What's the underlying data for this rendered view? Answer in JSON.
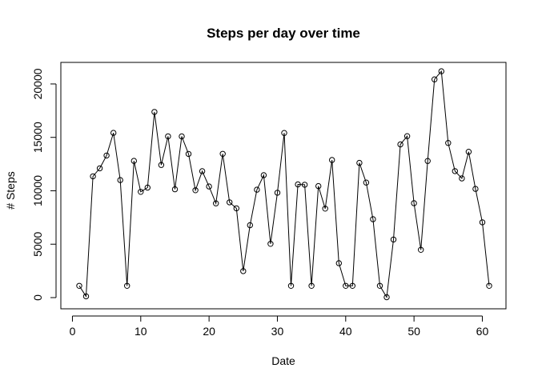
{
  "chart_data": {
    "type": "line",
    "title": "Steps per day over time",
    "xlabel": "Date",
    "ylabel": "# Steps",
    "xlim": [
      1,
      61
    ],
    "ylim": [
      0,
      21194
    ],
    "x_ticks": [
      0,
      10,
      20,
      30,
      40,
      50,
      60
    ],
    "y_ticks": [
      0,
      5000,
      10000,
      15000,
      20000
    ],
    "grid": false,
    "legend": "none",
    "point_style": "open-circle",
    "line_color": "#000000",
    "series": [
      {
        "x": [
          1,
          2,
          3,
          4,
          5,
          6,
          7,
          8,
          9,
          10,
          11,
          12,
          13,
          14,
          15,
          16,
          17,
          18,
          19,
          20,
          21,
          22,
          23,
          24,
          25,
          26,
          27,
          28,
          29,
          30,
          31,
          32,
          33,
          34,
          35,
          36,
          37,
          38,
          39,
          40,
          41,
          42,
          43,
          44,
          45,
          46,
          47,
          48,
          49,
          50,
          51,
          52,
          53,
          54,
          55,
          56,
          57,
          58,
          59,
          60,
          61
        ],
        "y": [
          1100,
          120,
          11350,
          12100,
          13300,
          15420,
          11000,
          1100,
          12800,
          9900,
          10300,
          17380,
          12420,
          15100,
          10140,
          15090,
          13450,
          10050,
          11830,
          10400,
          8820,
          13460,
          8920,
          8360,
          2480,
          6780,
          10100,
          11460,
          5030,
          9820,
          15410,
          1100,
          10600,
          10570,
          1100,
          10440,
          8330,
          12880,
          3220,
          1100,
          1100,
          12610,
          10770,
          7340,
          1100,
          40,
          5440,
          14340,
          15110,
          8840,
          4470,
          12790,
          20430,
          21190,
          14480,
          11840,
          11160,
          13650,
          10180,
          7050,
          1100
        ]
      }
    ]
  }
}
